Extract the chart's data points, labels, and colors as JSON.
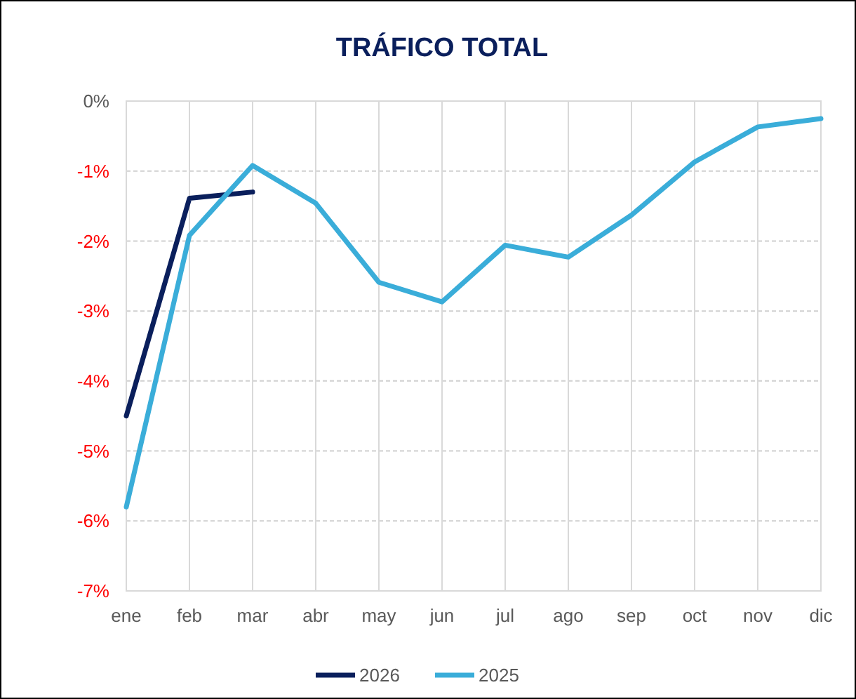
{
  "chart_data": {
    "type": "line",
    "title": "TRÁFICO TOTAL",
    "categories": [
      "ene",
      "feb",
      "mar",
      "abr",
      "may",
      "jun",
      "jul",
      "ago",
      "sep",
      "oct",
      "nov",
      "dic"
    ],
    "series": [
      {
        "name": "2026",
        "color": "#0a1f5c",
        "values": [
          -4.5,
          -1.39,
          -1.3,
          null,
          null,
          null,
          null,
          null,
          null,
          null,
          null,
          null
        ]
      },
      {
        "name": "2025",
        "color": "#3aadd9",
        "values": [
          -5.8,
          -1.92,
          -0.92,
          -1.46,
          -2.59,
          -2.87,
          -2.06,
          -2.23,
          -1.63,
          -0.87,
          -0.37,
          -0.25
        ]
      }
    ],
    "ylim": [
      -7,
      0
    ],
    "yticks": [
      {
        "value": 0,
        "label": "0%"
      },
      {
        "value": -1,
        "label": "-1%"
      },
      {
        "value": -2,
        "label": "-2%"
      },
      {
        "value": -3,
        "label": "-3%"
      },
      {
        "value": -4,
        "label": "-4%"
      },
      {
        "value": -5,
        "label": "-5%"
      },
      {
        "value": -6,
        "label": "-6%"
      },
      {
        "value": -7,
        "label": "-7%"
      }
    ],
    "grid": true,
    "legend": "bottom",
    "marker": "none",
    "line_style": "solid"
  }
}
